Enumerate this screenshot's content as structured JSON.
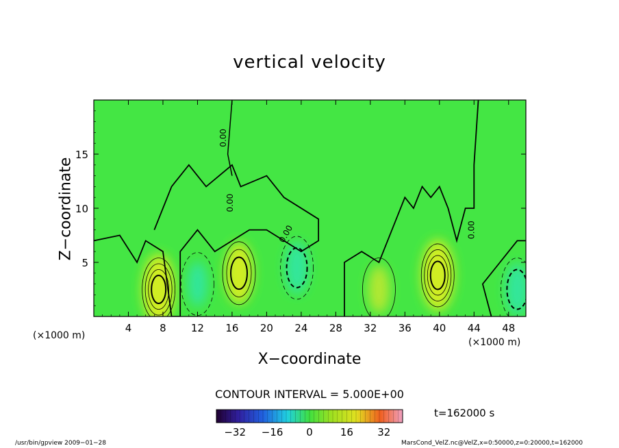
{
  "chart_data": {
    "type": "heatmap",
    "title": "vertical velocity",
    "xlabel": "X−coordinate",
    "ylabel": "Z−coordinate",
    "x_unit": "(×1000 m)",
    "xlim": [
      0,
      50
    ],
    "ylim": [
      0,
      20
    ],
    "x_ticks": [
      4,
      8,
      12,
      16,
      20,
      24,
      28,
      32,
      36,
      40,
      44,
      48
    ],
    "y_ticks": [
      5,
      10,
      15
    ],
    "contour_interval": "CONTOUR INTERVAL = 5.000E+00",
    "contour_zero_label": "0.00",
    "colorbar": {
      "range": [
        -40,
        40
      ],
      "ticks": [
        -32,
        -16,
        0,
        16,
        32
      ]
    },
    "time": "t=162000 s",
    "features": [
      {
        "x": 7.5,
        "z": 2.5,
        "value": 20,
        "sign": "positive"
      },
      {
        "x": 16.8,
        "z": 4.0,
        "value": 15,
        "sign": "positive"
      },
      {
        "x": 23.5,
        "z": 4.5,
        "value": -10,
        "sign": "negative"
      },
      {
        "x": 33.0,
        "z": 2.5,
        "value": 8,
        "sign": "positive"
      },
      {
        "x": 39.8,
        "z": 3.8,
        "value": 20,
        "sign": "positive"
      },
      {
        "x": 49.0,
        "z": 2.5,
        "value": -10,
        "sign": "negative"
      },
      {
        "x": 12.0,
        "z": 3.0,
        "value": -6,
        "sign": "negative"
      }
    ]
  },
  "footer": {
    "left": "/usr/bin/gpview  2009−01−28",
    "right": "MarsCond_VelZ.nc@VelZ,x=0:50000,z=0:20000,t=162000"
  },
  "colors": {
    "background_field": "#44e644",
    "positive": "#b8e830",
    "strong_positive": "#d8ee20",
    "negative": "#30e6a0"
  }
}
